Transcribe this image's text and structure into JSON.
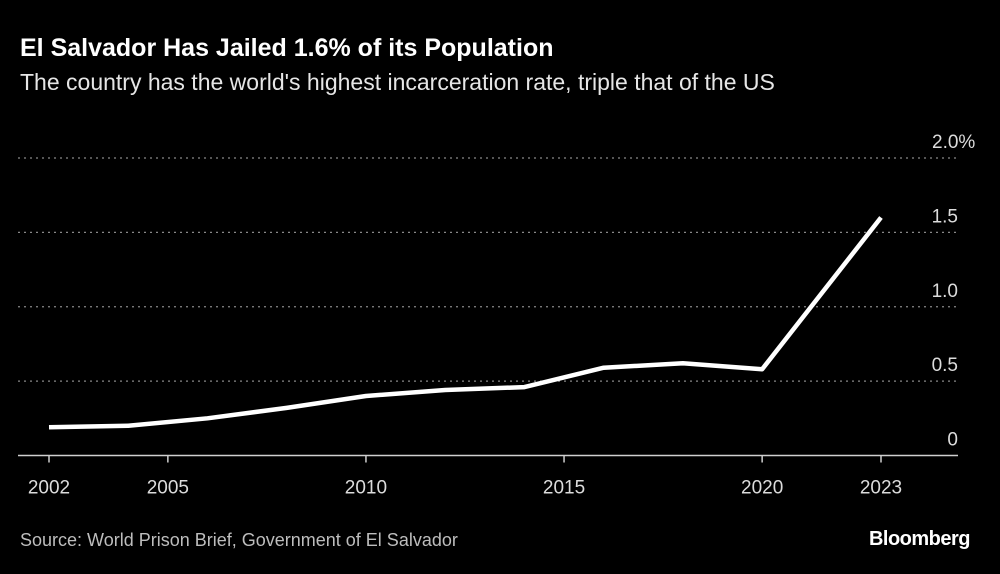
{
  "title": "El Salvador Has Jailed 1.6% of its Population",
  "subtitle": "The country has the world's highest incarceration rate, triple that of the US",
  "source": "Source: World Prison Brief, Government of El Salvador",
  "logo": "Bloomberg",
  "colors": {
    "background": "#000000",
    "line": "#ffffff",
    "grid": "#888888"
  },
  "chart_data": {
    "type": "line",
    "title": "El Salvador Has Jailed 1.6% of its Population",
    "xlabel": "",
    "ylabel": "",
    "x": [
      2002,
      2004,
      2006,
      2008,
      2010,
      2012,
      2014,
      2016,
      2018,
      2020,
      2023
    ],
    "values": [
      0.19,
      0.2,
      0.25,
      0.32,
      0.4,
      0.44,
      0.46,
      0.59,
      0.62,
      0.58,
      1.6
    ],
    "xlim": [
      2002,
      2023
    ],
    "ylim": [
      0,
      2.0
    ],
    "x_ticks": [
      2002,
      2005,
      2010,
      2015,
      2020,
      2023
    ],
    "x_tick_labels": [
      "2002",
      "2005",
      "2010",
      "2015",
      "2020",
      "2023"
    ],
    "y_ticks": [
      0,
      0.5,
      1.0,
      1.5,
      2.0
    ],
    "y_tick_labels": [
      "0",
      "0.5",
      "1.0",
      "1.5",
      "2.0%"
    ],
    "grid": "horizontal dotted",
    "y_axis_side": "right"
  }
}
